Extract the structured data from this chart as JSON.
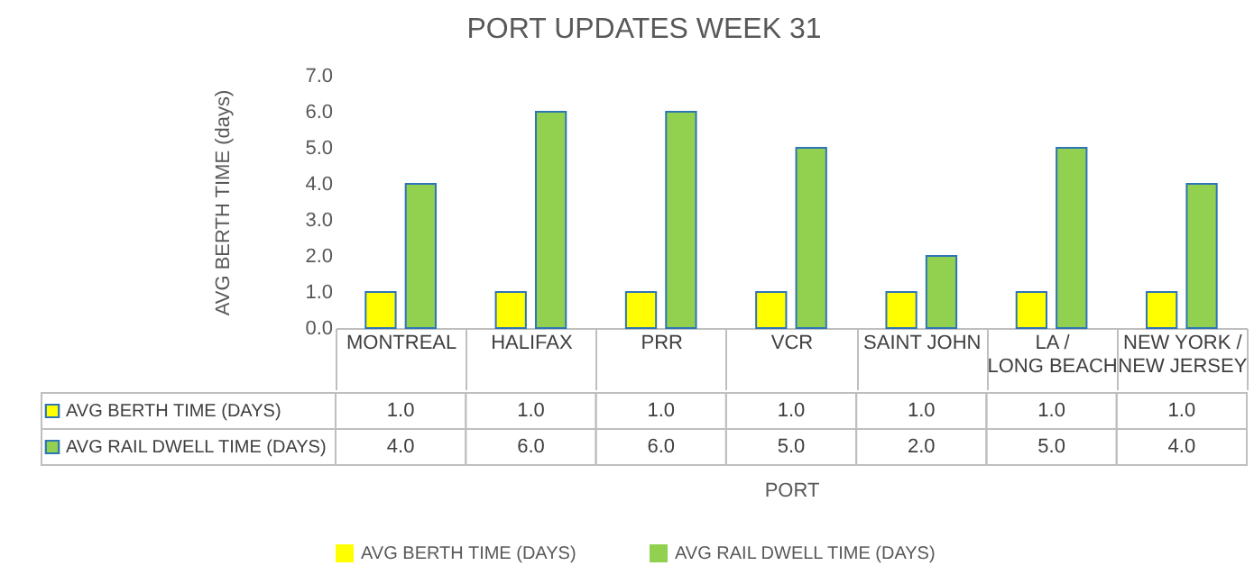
{
  "chart_data": {
    "type": "bar",
    "title": "PORT UPDATES WEEK 31",
    "annotations": [
      "PORT"
    ],
    "ylabel": "AVG BERTH TIME (days)",
    "categories": [
      "MONTREAL",
      "HALIFAX",
      "PRR",
      "VCR",
      "SAINT JOHN",
      "LA / LONG BEACH",
      "NEW YORK / NEW JERSEY"
    ],
    "series": [
      {
        "name": "AVG BERTH TIME (DAYS)",
        "color": "#ffff00",
        "values": [
          1.0,
          1.0,
          1.0,
          1.0,
          1.0,
          1.0,
          1.0
        ],
        "value_labels": [
          "1.0",
          "1.0",
          "1.0",
          "1.0",
          "1.0",
          "1.0",
          "1.0"
        ]
      },
      {
        "name": "AVG RAIL DWELL TIME (DAYS)",
        "color": "#92d050",
        "values": [
          4.0,
          6.0,
          6.0,
          5.0,
          2.0,
          5.0,
          4.0
        ],
        "value_labels": [
          "4.0",
          "6.0",
          "6.0",
          "5.0",
          "2.0",
          "5.0",
          "4.0"
        ]
      }
    ],
    "ylim": [
      0,
      7
    ],
    "yticks": [
      {
        "value": 0,
        "label": "0.0"
      },
      {
        "value": 1,
        "label": "1.0"
      },
      {
        "value": 2,
        "label": "2.0"
      },
      {
        "value": 3,
        "label": "3.0"
      },
      {
        "value": 4,
        "label": "4.0"
      },
      {
        "value": 5,
        "label": "5.0"
      },
      {
        "value": 6,
        "label": "6.0"
      },
      {
        "value": 7,
        "label": "7.0"
      }
    ],
    "grid": false,
    "legend": "bottom"
  }
}
